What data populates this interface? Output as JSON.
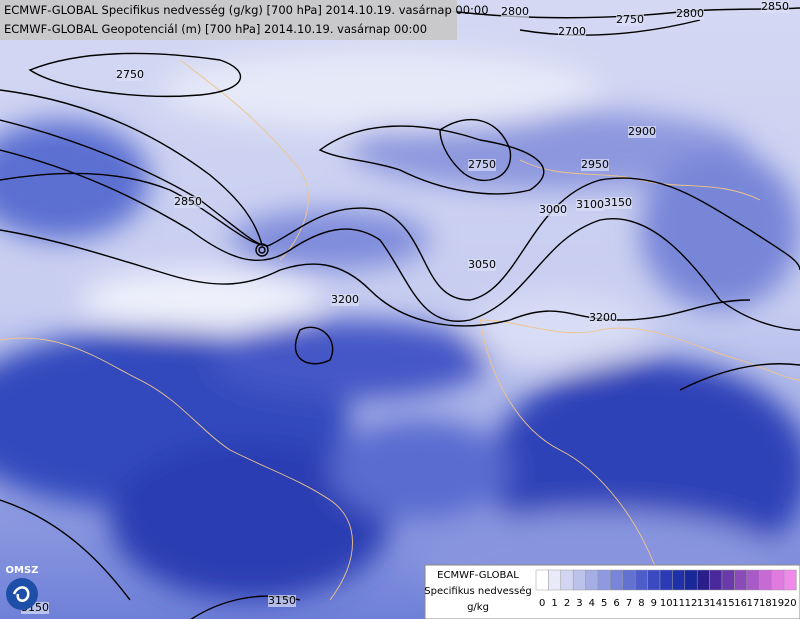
{
  "header": {
    "line1": "ECMWF-GLOBAL Specifikus nedvesség (g/kg) [700 hPa] 2014.10.19. vasárnap 00:00",
    "line2": "ECMWF-GLOBAL Geopotenciál (m) [700 hPa] 2014.10.19. vasárnap 00:00"
  },
  "contour_labels": [
    "2850",
    "2800",
    "2750",
    "2800",
    "2700",
    "2750",
    "2750",
    "2900",
    "2950",
    "3000",
    "3100",
    "3150",
    "3050",
    "2850",
    "3200",
    "3200",
    "3150",
    "3150"
  ],
  "legend": {
    "model": "ECMWF-GLOBAL",
    "variable": "Specifikus nedvesség",
    "unit": "g/kg",
    "scale_labels": [
      0,
      1,
      2,
      3,
      4,
      5,
      6,
      7,
      8,
      9,
      10,
      11,
      12,
      13,
      14,
      15,
      16,
      17,
      18,
      19,
      20
    ],
    "scale_colors": [
      "#ffffff",
      "#e8eaf8",
      "#d2d6f2",
      "#bcc2ec",
      "#a6aee6",
      "#8f99df",
      "#7985d8",
      "#6371d1",
      "#4d5dca",
      "#3a4bc2",
      "#2b3bb6",
      "#2030a8",
      "#182898",
      "#2a1f8a",
      "#4a2a9a",
      "#6a3aaa",
      "#8a4aba",
      "#a95ac8",
      "#c66ad4",
      "#e07ade",
      "#f08ae8"
    ]
  },
  "logo": {
    "text": "OMSZ"
  }
}
